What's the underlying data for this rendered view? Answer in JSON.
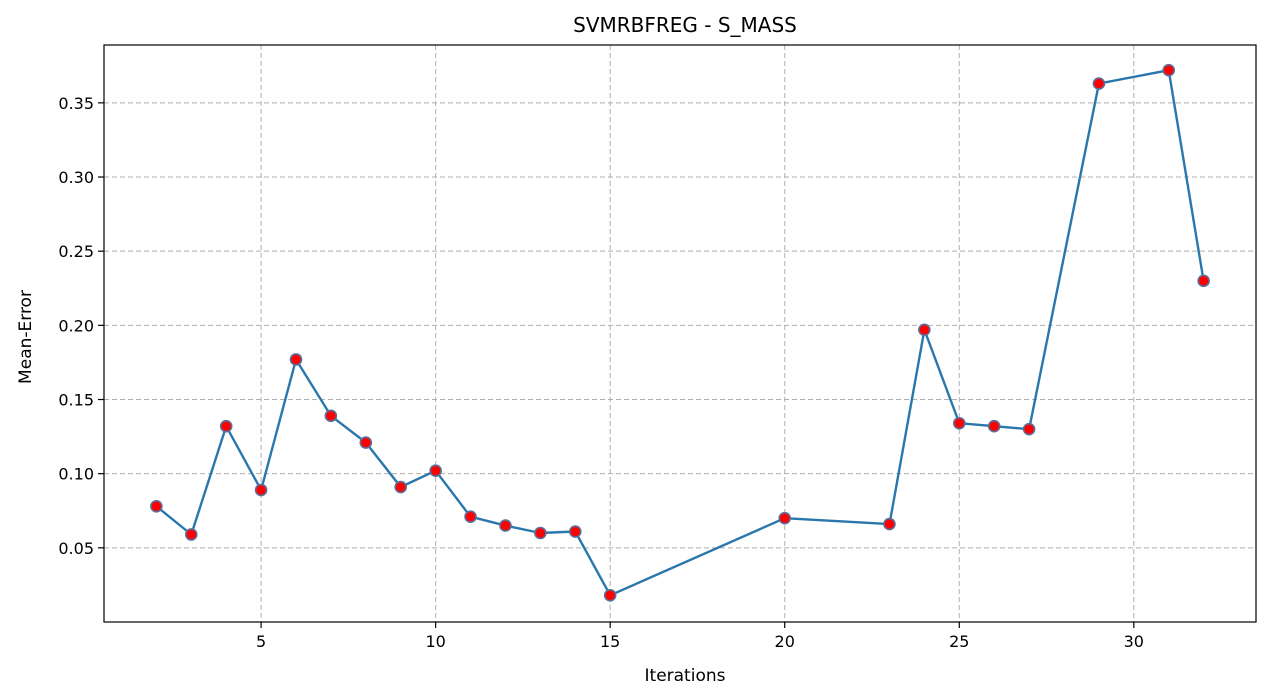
{
  "chart_data": {
    "type": "line",
    "title": "SVMRBFREG - S_MASS",
    "xlabel": "Iterations",
    "ylabel": "Mean-Error",
    "xlim": [
      0.5,
      33.5
    ],
    "ylim": [
      0.0,
      0.389
    ],
    "grid": true,
    "x_ticks": [
      5,
      10,
      15,
      20,
      25,
      30
    ],
    "x_tick_labels": [
      "5",
      "10",
      "15",
      "20",
      "25",
      "30"
    ],
    "y_ticks": [
      0.05,
      0.1,
      0.15,
      0.2,
      0.25,
      0.3,
      0.35
    ],
    "y_tick_labels": [
      "0.05",
      "0.10",
      "0.15",
      "0.20",
      "0.25",
      "0.30",
      "0.35"
    ],
    "series": [
      {
        "line_color": "#2a77ad",
        "marker_color": "#ff0000",
        "marker_edge_color": "#5a6f9a",
        "x": [
          2,
          3,
          4,
          5,
          6,
          7,
          8,
          9,
          10,
          11,
          12,
          13,
          14,
          15,
          20,
          23,
          24,
          25,
          26,
          27,
          29,
          31,
          32
        ],
        "y": [
          0.078,
          0.059,
          0.132,
          0.089,
          0.177,
          0.139,
          0.121,
          0.091,
          0.102,
          0.071,
          0.065,
          0.06,
          0.061,
          0.018,
          0.07,
          0.066,
          0.197,
          0.134,
          0.132,
          0.13,
          0.363,
          0.372,
          0.23
        ]
      }
    ]
  }
}
